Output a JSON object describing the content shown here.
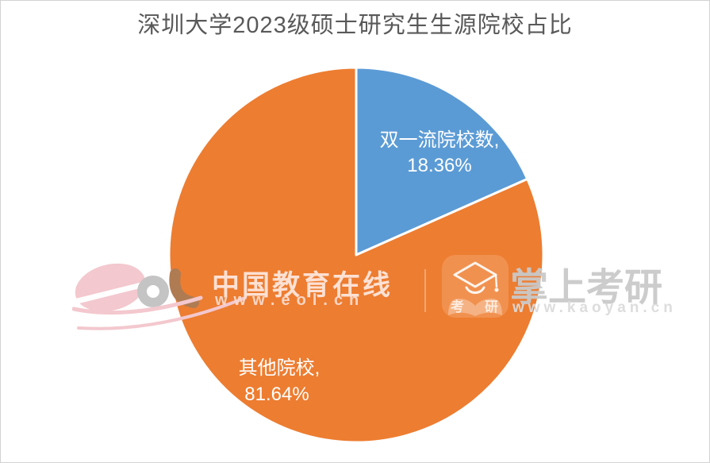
{
  "page": {
    "background": "#FFFFFF",
    "border_color": "#D2D2D2"
  },
  "chart_data": {
    "type": "pie",
    "title": "深圳大学2023级硕士研究生生源院校占比",
    "title_color": "#595959",
    "start_angle_deg": 0,
    "direction": "clockwise",
    "separator_color": "#FFFFFF",
    "label_color": "#FFFFFF",
    "legend": "none",
    "slices": [
      {
        "name": "双一流院校数",
        "value": 18.36,
        "display": "双一流院校数, 18.36%",
        "label_line1": "双一流院校数,",
        "label_line2": "18.36%",
        "color": "#5B9BD5"
      },
      {
        "name": "其他院校",
        "value": 81.64,
        "display": "其他院校, 81.64%",
        "label_line1": "其他院校,",
        "label_line2": "81.64%",
        "color": "#ED7D31"
      }
    ]
  },
  "watermarks": {
    "eol": {
      "logo_icon": "eol-logo-icon",
      "name": "中国教育在线",
      "url": "www.eol.cn",
      "logo_colors": {
        "e": "#F3C8CE",
        "o": "#C4C4C4",
        "l": "#AF7B52"
      }
    },
    "kaoyan": {
      "icon": "graduation-cap-icon",
      "icon_color": "#F1914F",
      "icon_chars": [
        "考",
        "研"
      ],
      "name": "掌上考研",
      "url": "www.kaoyan.cn"
    }
  }
}
